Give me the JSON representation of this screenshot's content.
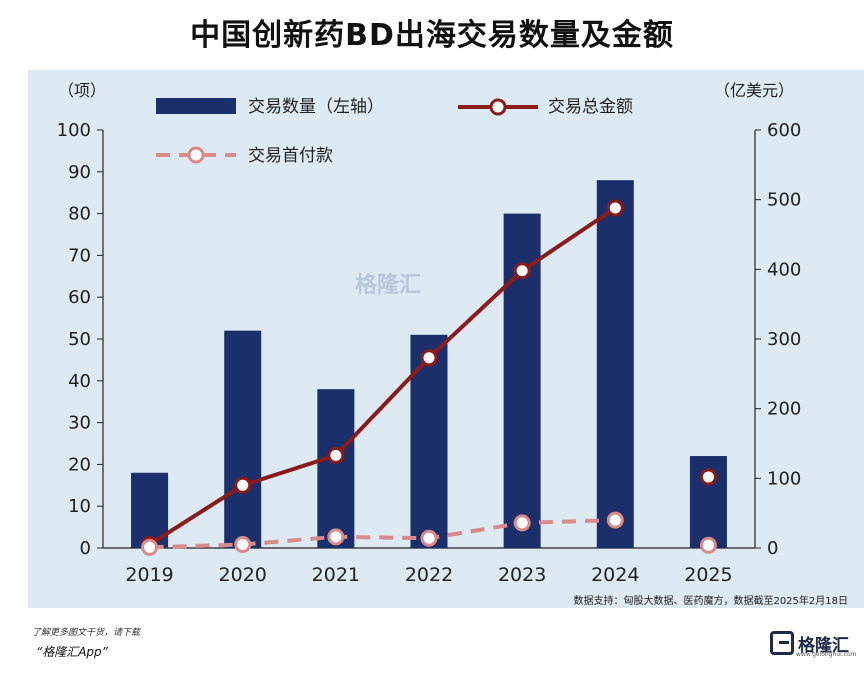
{
  "title": "中国创新药BD出海交易数量及金额",
  "chart_data": {
    "type": "bar+line",
    "categories": [
      "2019",
      "2020",
      "2021",
      "2022",
      "2023",
      "2024",
      "2025"
    ],
    "left_axis": {
      "label": "（项）",
      "ylim": [
        0,
        100
      ],
      "ticks": [
        0,
        10,
        20,
        30,
        40,
        50,
        60,
        70,
        80,
        90,
        100
      ]
    },
    "right_axis": {
      "label": "（亿美元）",
      "ylim": [
        0,
        600
      ],
      "ticks": [
        0,
        100,
        200,
        300,
        400,
        500,
        600
      ]
    },
    "series": [
      {
        "name": "交易数量（左轴）",
        "type": "bar",
        "axis": "left",
        "color": "#1b2f6b",
        "values": [
          18,
          52,
          38,
          51,
          80,
          88,
          22
        ]
      },
      {
        "name": "交易总金额",
        "type": "line",
        "axis": "right",
        "color": "#8b1a1a",
        "values": [
          5,
          90,
          133,
          273,
          398,
          488,
          102
        ]
      },
      {
        "name": "交易首付款",
        "type": "dashed-line",
        "axis": "right",
        "color": "#d98b8b",
        "values": [
          1,
          5,
          16,
          14,
          36,
          40,
          4
        ]
      }
    ],
    "legend_placement": "top",
    "grid": false
  },
  "source": "数据支持：匈股大数据、医药魔方，数据截至2025年2月18日",
  "watermark": "格隆汇",
  "footer": {
    "note": "了解更多图文干货，请下载",
    "app": "“格隆汇App”",
    "logo_text": "格隆汇",
    "logo_sub": "www.gelonghui.com"
  }
}
